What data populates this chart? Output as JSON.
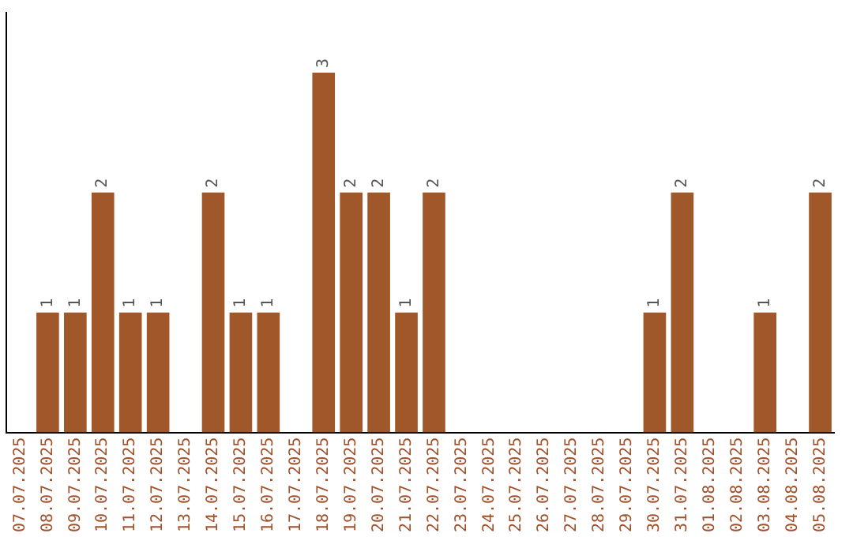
{
  "chart_data": {
    "type": "bar",
    "categories": [
      "07.07.2025",
      "08.07.2025",
      "09.07.2025",
      "10.07.2025",
      "11.07.2025",
      "12.07.2025",
      "13.07.2025",
      "14.07.2025",
      "15.07.2025",
      "16.07.2025",
      "17.07.2025",
      "18.07.2025",
      "19.07.2025",
      "20.07.2025",
      "21.07.2025",
      "22.07.2025",
      "23.07.2025",
      "24.07.2025",
      "25.07.2025",
      "26.07.2025",
      "27.07.2025",
      "28.07.2025",
      "29.07.2025",
      "30.07.2025",
      "31.07.2025",
      "01.08.2025",
      "02.08.2025",
      "03.08.2025",
      "04.08.2025",
      "05.08.2025"
    ],
    "values": [
      0,
      1,
      1,
      2,
      1,
      1,
      0,
      2,
      1,
      1,
      0,
      3,
      2,
      2,
      1,
      2,
      0,
      0,
      0,
      0,
      0,
      0,
      0,
      1,
      2,
      0,
      0,
      1,
      0,
      2
    ],
    "value_labels": [
      null,
      "1",
      "1",
      "2",
      "1",
      "1",
      null,
      "2",
      "1",
      "1",
      null,
      "3",
      "2",
      "2",
      "1",
      "2",
      null,
      null,
      null,
      null,
      null,
      null,
      null,
      "1",
      "2",
      null,
      null,
      "1",
      null,
      "2"
    ],
    "color": "#a0582a",
    "tick_labels": "x",
    "grid": false,
    "legend": false
  }
}
